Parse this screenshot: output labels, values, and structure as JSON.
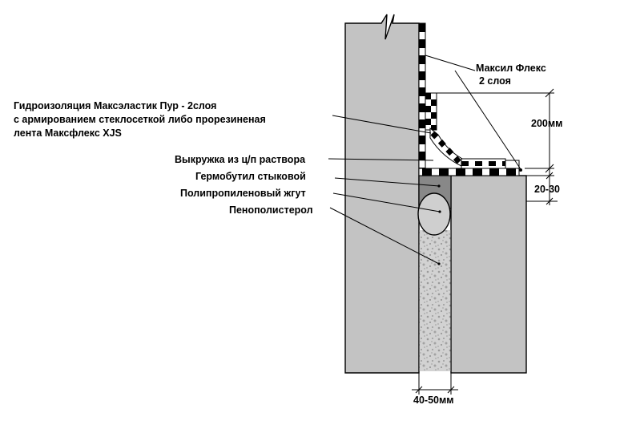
{
  "colors": {
    "concrete": "#c3c3c3",
    "hermobutyl": "#888888",
    "foam_fill": "#d2d2d2",
    "foam_speckle": "#9a9a9a",
    "line": "#000000",
    "background": "#ffffff"
  },
  "labels": {
    "maksil_line1": "Максил Флекс",
    "maksil_line2": "2 слоя",
    "waterproof_line1": "Гидроизоляция Максэластик Пур - 2слоя",
    "waterproof_line2": "с армированием стеклосеткой либо прорезиненая",
    "waterproof_line3": "лента Максфлекс XJS",
    "fillet": "Выкружка из ц/п раствора",
    "hermobutyl": "Гермобутил стыковой",
    "cord": "Полипропиленовый жгут",
    "foam": "Пенополистерол",
    "dim_200": "200мм",
    "dim_20_30": "20-30",
    "dim_40_50": "40-50мм"
  }
}
